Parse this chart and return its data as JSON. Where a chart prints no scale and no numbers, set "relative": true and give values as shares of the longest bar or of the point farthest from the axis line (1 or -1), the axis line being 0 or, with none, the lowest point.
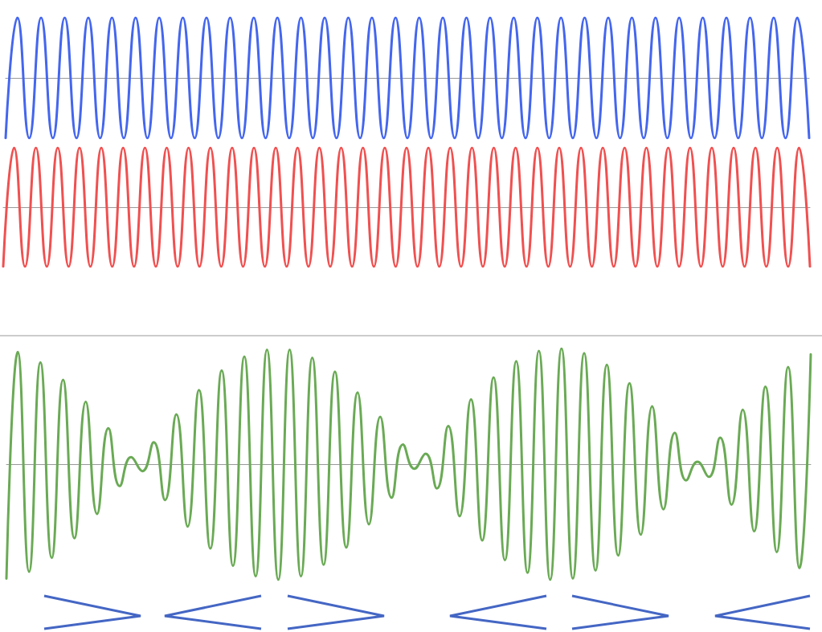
{
  "chart_data": [
    {
      "type": "line",
      "relative": true,
      "tick_labels": false,
      "categories": [
        null,
        null,
        null,
        null,
        null,
        null,
        null,
        null,
        null,
        null,
        null,
        null,
        null,
        null,
        null,
        null,
        null,
        null,
        null,
        null,
        null,
        null,
        null,
        null,
        null,
        null,
        null,
        null,
        null,
        null,
        null,
        null,
        null,
        null,
        null,
        null,
        null,
        null,
        null,
        null,
        null,
        null,
        null,
        null,
        null,
        null,
        null,
        null,
        null,
        null,
        null,
        null,
        null,
        null,
        null,
        null,
        null,
        null,
        null,
        null,
        null,
        null,
        null,
        null,
        null,
        null,
        null,
        null,
        null
      ],
      "series": [
        {
          "color": "#4466ee",
          "values": [
            -1,
            1,
            -1,
            1,
            -1,
            1,
            -1,
            1,
            -1,
            1,
            -1,
            1,
            -1,
            1,
            -1,
            1,
            -1,
            1,
            -1,
            1,
            -1,
            1,
            -1,
            1,
            -1,
            1,
            -1,
            1,
            -1,
            1,
            -1,
            1,
            -1,
            1,
            -1,
            1,
            -1,
            1,
            -1,
            1,
            -1,
            1,
            -1,
            1,
            -1,
            1,
            -1,
            1,
            -1,
            1,
            -1,
            1,
            -1,
            1,
            -1,
            1,
            -1,
            1,
            -1,
            1,
            -1,
            1,
            -1,
            1,
            -1,
            1,
            -1,
            1,
            -1
          ]
        }
      ]
    },
    {
      "type": "line",
      "relative": true,
      "tick_labels": false,
      "categories": [
        null,
        null,
        null,
        null,
        null,
        null,
        null,
        null,
        null,
        null,
        null,
        null,
        null,
        null,
        null,
        null,
        null,
        null,
        null,
        null,
        null,
        null,
        null,
        null,
        null,
        null,
        null,
        null,
        null,
        null,
        null,
        null,
        null,
        null,
        null,
        null,
        null,
        null,
        null,
        null,
        null,
        null,
        null,
        null,
        null,
        null,
        null,
        null,
        null,
        null,
        null,
        null,
        null,
        null,
        null,
        null,
        null,
        null,
        null,
        null,
        null,
        null,
        null,
        null,
        null,
        null,
        null,
        null,
        null,
        null,
        null,
        null,
        null,
        null,
        null
      ],
      "series": [
        {
          "color": "#f05050",
          "values": [
            -1,
            1,
            -1,
            1,
            -1,
            1,
            -1,
            1,
            -1,
            1,
            -1,
            1,
            -1,
            1,
            -1,
            1,
            -1,
            1,
            -1,
            1,
            -1,
            1,
            -1,
            1,
            -1,
            1,
            -1,
            1,
            -1,
            1,
            -1,
            1,
            -1,
            1,
            -1,
            1,
            -1,
            1,
            -1,
            1,
            -1,
            1,
            -1,
            1,
            -1,
            1,
            -1,
            1,
            -1,
            1,
            -1,
            1,
            -1,
            1,
            -1,
            1,
            -1,
            1,
            -1,
            1,
            -1,
            1,
            -1,
            1,
            -1,
            1,
            -1,
            1,
            -1,
            1,
            -1,
            1,
            -1,
            1,
            -1
          ]
        }
      ]
    },
    {
      "type": "line",
      "relative": true,
      "tick_labels": false,
      "categories": [
        null,
        null,
        null,
        null,
        null,
        null,
        null,
        null,
        null,
        null,
        null,
        null,
        null,
        null,
        null,
        null,
        null,
        null,
        null,
        null,
        null,
        null,
        null,
        null,
        null,
        null,
        null,
        null,
        null,
        null,
        null,
        null,
        null,
        null,
        null,
        null,
        null,
        null,
        null,
        null,
        null,
        null,
        null,
        null,
        null,
        null,
        null,
        null,
        null,
        null,
        null,
        null,
        null,
        null,
        null,
        null,
        null,
        null,
        null,
        null,
        null,
        null,
        null,
        null,
        null,
        null,
        null,
        null,
        null,
        null,
        null,
        null
      ],
      "series": [
        {
          "color": "#6aaa55",
          "values": [
            -0.99,
            0.97,
            -0.93,
            0.88,
            -0.81,
            0.73,
            -0.64,
            0.54,
            -0.43,
            0.31,
            -0.19,
            0.06,
            -0.06,
            0.19,
            -0.31,
            0.43,
            -0.54,
            0.64,
            -0.73,
            0.81,
            -0.88,
            0.93,
            -0.97,
            0.99,
            -1,
            0.99,
            -0.97,
            0.92,
            -0.87,
            0.8,
            -0.72,
            0.62,
            -0.52,
            0.41,
            -0.29,
            0.17,
            -0.04,
            0.09,
            -0.21,
            0.33,
            -0.45,
            0.56,
            -0.66,
            0.75,
            -0.83,
            0.89,
            -0.94,
            0.98,
            -1,
            1,
            -0.99,
            0.96,
            -0.92,
            0.86,
            -0.79,
            0.7,
            -0.61,
            0.5,
            -0.39,
            0.27,
            -0.14,
            0.02,
            -0.11,
            0.23,
            -0.35,
            0.47,
            -0.58,
            0.67,
            -0.76,
            0.84,
            -0.9,
            0.95
          ]
        }
      ]
    }
  ]
}
